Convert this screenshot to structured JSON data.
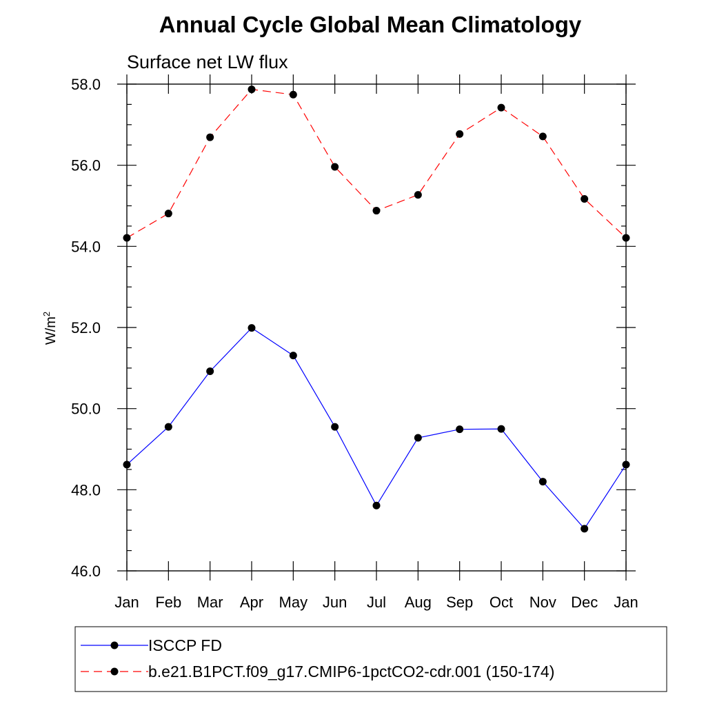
{
  "chart_data": {
    "type": "line",
    "title": "Annual Cycle Global Mean Climatology",
    "subtitle": "Surface net LW flux",
    "xlabel": "",
    "ylabel": "W/m",
    "ylabel_superscript": "2",
    "categories": [
      "Jan",
      "Feb",
      "Mar",
      "Apr",
      "May",
      "Jun",
      "Jul",
      "Aug",
      "Sep",
      "Oct",
      "Nov",
      "Dec",
      "Jan"
    ],
    "ylim": [
      46.0,
      58.0
    ],
    "yticks": [
      "46.0",
      "48.0",
      "50.0",
      "52.0",
      "54.0",
      "56.0",
      "58.0"
    ],
    "grid": false,
    "legend_position": "bottom",
    "series": [
      {
        "name": "ISCCP FD",
        "color": "#0000ff",
        "line_style": "solid",
        "marker": "circle",
        "values": [
          48.62,
          49.55,
          50.92,
          51.99,
          51.31,
          49.55,
          47.61,
          49.28,
          49.49,
          49.5,
          48.2,
          47.04,
          48.62
        ]
      },
      {
        "name": "b.e21.B1PCT.f09_g17.CMIP6-1pctCO2-cdr.001 (150-174)",
        "color": "#ff0000",
        "line_style": "dashed",
        "marker": "circle",
        "values": [
          54.21,
          54.81,
          56.69,
          57.87,
          57.74,
          55.96,
          54.88,
          55.27,
          56.77,
          57.42,
          56.71,
          55.17,
          54.21
        ]
      }
    ]
  }
}
